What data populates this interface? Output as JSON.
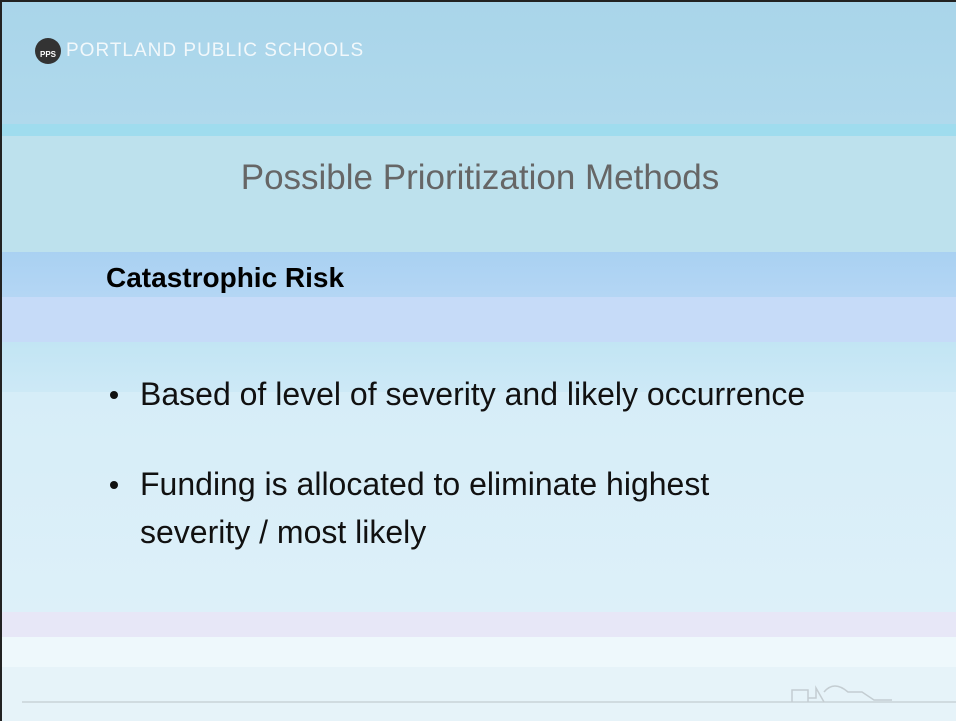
{
  "header": {
    "logo": "PPS",
    "organization": "PORTLAND PUBLIC SCHOOLS"
  },
  "title": "Possible Prioritization Methods",
  "subtitle": "Catastrophic Risk",
  "bullets": [
    "Based of level of severity and likely occurrence",
    "Funding is allocated to eliminate highest severity / most likely"
  ]
}
